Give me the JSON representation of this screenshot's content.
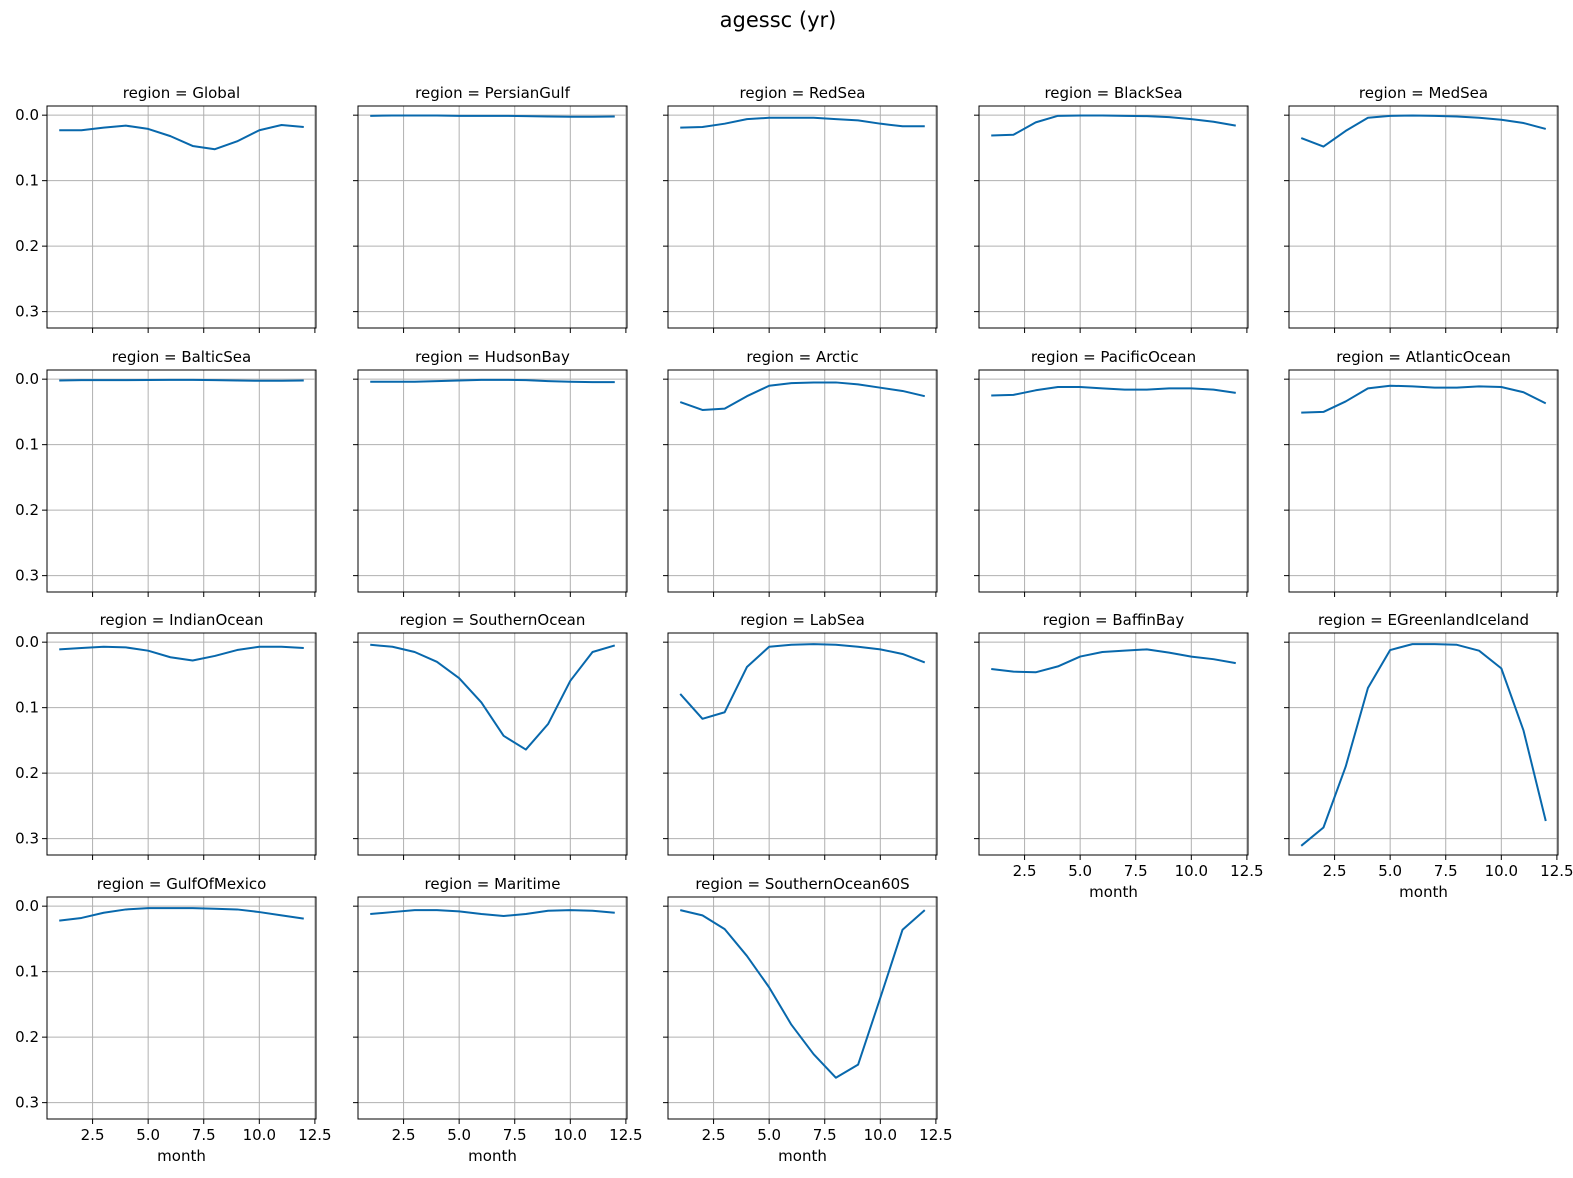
{
  "chart_data": {
    "type": "line",
    "title": "agessc (yr)",
    "xlabel": "month",
    "ylabel": "",
    "xlim": [
      0.45,
      12.55
    ],
    "ylim": [
      0.325,
      -0.014
    ],
    "y_inverted": true,
    "grid": true,
    "line_color": "#0868ac",
    "x": [
      1,
      2,
      3,
      4,
      5,
      6,
      7,
      8,
      9,
      10,
      11,
      12
    ],
    "xticks": [
      2.5,
      5.0,
      7.5,
      10.0,
      12.5
    ],
    "xtick_labels": [
      "2.5",
      "5.0",
      "7.5",
      "10.0",
      "12.5"
    ],
    "yticks": [
      0.0,
      0.1,
      0.2,
      0.3
    ],
    "ytick_labels": [
      "0.0",
      "0.1",
      "0.2",
      "0.3"
    ],
    "panels": [
      {
        "title": "region = Global",
        "values": [
          0.023,
          0.023,
          0.019,
          0.016,
          0.021,
          0.032,
          0.047,
          0.052,
          0.04,
          0.023,
          0.015,
          0.018
        ]
      },
      {
        "title": "region = PersianGulf",
        "values": [
          0.001,
          0.0005,
          0.0005,
          0.0005,
          0.001,
          0.001,
          0.001,
          0.0015,
          0.002,
          0.0025,
          0.0025,
          0.002
        ]
      },
      {
        "title": "region = RedSea",
        "values": [
          0.019,
          0.018,
          0.013,
          0.006,
          0.004,
          0.004,
          0.004,
          0.006,
          0.008,
          0.013,
          0.017,
          0.017
        ]
      },
      {
        "title": "region = BlackSea",
        "values": [
          0.031,
          0.03,
          0.011,
          0.001,
          0.0005,
          0.0005,
          0.001,
          0.0015,
          0.003,
          0.006,
          0.01,
          0.016
        ]
      },
      {
        "title": "region = MedSea",
        "values": [
          0.035,
          0.048,
          0.024,
          0.004,
          0.001,
          0.0005,
          0.001,
          0.002,
          0.004,
          0.007,
          0.012,
          0.021
        ]
      },
      {
        "title": "region = BalticSea",
        "values": [
          0.002,
          0.0015,
          0.0015,
          0.0015,
          0.0012,
          0.001,
          0.001,
          0.0015,
          0.002,
          0.0025,
          0.0025,
          0.002
        ]
      },
      {
        "title": "region = HudsonBay",
        "values": [
          0.004,
          0.004,
          0.004,
          0.003,
          0.002,
          0.001,
          0.001,
          0.0015,
          0.003,
          0.004,
          0.0045,
          0.0045
        ]
      },
      {
        "title": "region = Arctic",
        "values": [
          0.035,
          0.047,
          0.045,
          0.026,
          0.01,
          0.006,
          0.005,
          0.005,
          0.008,
          0.013,
          0.018,
          0.026
        ]
      },
      {
        "title": "region = PacificOcean",
        "values": [
          0.025,
          0.024,
          0.017,
          0.012,
          0.012,
          0.014,
          0.016,
          0.016,
          0.014,
          0.014,
          0.016,
          0.021
        ]
      },
      {
        "title": "region = AtlanticOcean",
        "values": [
          0.051,
          0.05,
          0.034,
          0.014,
          0.01,
          0.011,
          0.013,
          0.013,
          0.011,
          0.012,
          0.02,
          0.037
        ]
      },
      {
        "title": "region = IndianOcean",
        "values": [
          0.011,
          0.009,
          0.007,
          0.008,
          0.013,
          0.023,
          0.028,
          0.021,
          0.012,
          0.007,
          0.007,
          0.009
        ]
      },
      {
        "title": "region = SouthernOcean",
        "values": [
          0.004,
          0.007,
          0.015,
          0.03,
          0.055,
          0.092,
          0.143,
          0.164,
          0.125,
          0.059,
          0.015,
          0.005
        ]
      },
      {
        "title": "region = LabSea",
        "values": [
          0.079,
          0.117,
          0.107,
          0.038,
          0.007,
          0.004,
          0.003,
          0.004,
          0.007,
          0.011,
          0.018,
          0.031
        ]
      },
      {
        "title": "region = BaffinBay",
        "values": [
          0.041,
          0.045,
          0.046,
          0.037,
          0.022,
          0.015,
          0.013,
          0.011,
          0.016,
          0.022,
          0.026,
          0.032
        ]
      },
      {
        "title": "region = EGreenlandIceland",
        "values": [
          0.311,
          0.283,
          0.19,
          0.07,
          0.012,
          0.003,
          0.003,
          0.004,
          0.013,
          0.04,
          0.135,
          0.273
        ]
      },
      {
        "title": "region = GulfOfMexico",
        "values": [
          0.022,
          0.018,
          0.01,
          0.005,
          0.003,
          0.003,
          0.003,
          0.004,
          0.005,
          0.009,
          0.014,
          0.019
        ]
      },
      {
        "title": "region = Maritime",
        "values": [
          0.012,
          0.009,
          0.006,
          0.006,
          0.008,
          0.012,
          0.015,
          0.012,
          0.007,
          0.006,
          0.007,
          0.01
        ]
      },
      {
        "title": "region = SouthernOcean60S",
        "values": [
          0.006,
          0.014,
          0.035,
          0.076,
          0.124,
          0.181,
          0.226,
          0.262,
          0.242,
          0.14,
          0.036,
          0.006
        ]
      }
    ]
  }
}
